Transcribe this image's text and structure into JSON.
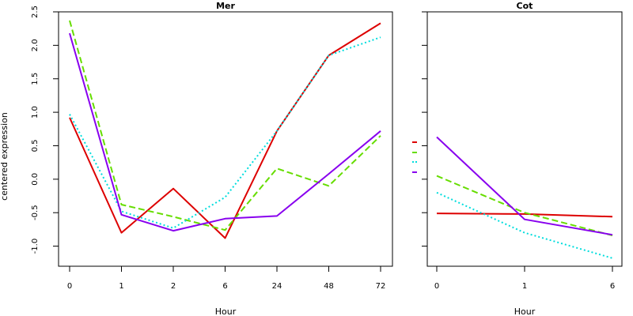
{
  "chart_data": [
    {
      "type": "line",
      "title": "Mer",
      "xlabel": "Hour",
      "ylabel": "centered expression",
      "categories": [
        "0",
        "1",
        "2",
        "6",
        "24",
        "48",
        "72"
      ],
      "ylim": [
        -1.3,
        2.5
      ],
      "yticks": [
        -1.0,
        -0.5,
        0.0,
        0.5,
        1.0,
        1.5,
        2.0,
        2.5
      ],
      "ytick_labels": [
        "-1.0",
        "-0.5",
        "0.0",
        "0.5",
        "1.0",
        "1.5",
        "2.0",
        "2.5"
      ],
      "grid": false,
      "series": [
        {
          "color": "#dd0000",
          "dash": "solid",
          "values": [
            0.92,
            -0.8,
            -0.14,
            -0.88,
            0.72,
            1.85,
            2.33
          ]
        },
        {
          "color": "#66dd00",
          "dash": "dashed",
          "values": [
            2.37,
            -0.38,
            -0.56,
            -0.76,
            0.16,
            -0.1,
            0.65
          ]
        },
        {
          "color": "#00dddd",
          "dash": "dotted",
          "values": [
            0.97,
            -0.48,
            -0.73,
            -0.27,
            0.72,
            1.85,
            2.12
          ]
        },
        {
          "color": "#8800ee",
          "dash": "solid",
          "values": [
            2.18,
            -0.53,
            -0.77,
            -0.59,
            -0.55,
            0.08,
            0.72
          ]
        }
      ]
    },
    {
      "type": "line",
      "title": "Cot",
      "xlabel": "Hour",
      "ylabel": "",
      "categories": [
        "0",
        "1",
        "6"
      ],
      "ylim": [
        -1.3,
        2.5
      ],
      "grid": false,
      "series": [
        {
          "color": "#dd0000",
          "dash": "solid",
          "values": [
            -0.51,
            -0.52,
            -0.56
          ]
        },
        {
          "color": "#66dd00",
          "dash": "dashed",
          "values": [
            0.05,
            -0.5,
            -0.84
          ]
        },
        {
          "color": "#00dddd",
          "dash": "dotted",
          "values": [
            -0.2,
            -0.8,
            -1.18
          ]
        },
        {
          "color": "#8800ee",
          "dash": "solid",
          "values": [
            0.63,
            -0.6,
            -0.83
          ]
        }
      ]
    }
  ]
}
